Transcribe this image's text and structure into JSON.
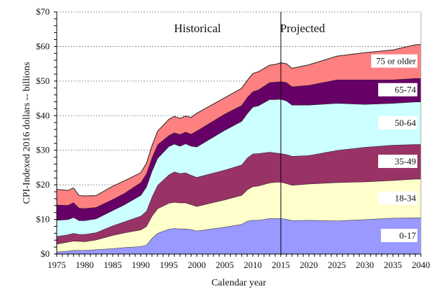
{
  "chart_data": {
    "type": "area",
    "stacked": true,
    "title": "",
    "xlabel": "Calendar year",
    "ylabel": "CPI-Indexed 2016 dollars -- billions",
    "xlim": [
      1975,
      2040
    ],
    "ylim": [
      0,
      70
    ],
    "x_ticks": [
      "1975",
      "1980",
      "1985",
      "1990",
      "1995",
      "2000",
      "2005",
      "2010",
      "2015",
      "2020",
      "2025",
      "2030",
      "2035",
      "2040"
    ],
    "y_ticks": [
      "$0",
      "$10",
      "$20",
      "$30",
      "$40",
      "$50",
      "$60",
      "$70"
    ],
    "y_tick_values": [
      0,
      10,
      20,
      30,
      40,
      50,
      60,
      70
    ],
    "grid": "horizontal-dashed",
    "divider": {
      "x": 2015,
      "left_label": "Historical",
      "right_label": "Projected"
    },
    "x": [
      1975,
      1977,
      1978,
      1979,
      1980,
      1982,
      1985,
      1987,
      1990,
      1991,
      1992,
      1993,
      1995,
      1996,
      1997,
      1998,
      1999,
      2000,
      2005,
      2008,
      2009,
      2010,
      2011,
      2013,
      2014,
      2015,
      2016,
      2017,
      2020,
      2025,
      2030,
      2035,
      2039,
      2040
    ],
    "series": [
      {
        "name": "0-17",
        "color": "#9999ff",
        "values": [
          0.6,
          0.9,
          1.1,
          1.1,
          1.1,
          1.3,
          1.6,
          1.9,
          2.2,
          2.6,
          4.6,
          6.0,
          7.2,
          7.4,
          7.3,
          7.3,
          7.1,
          6.7,
          7.8,
          8.6,
          9.5,
          9.8,
          9.8,
          10.3,
          10.3,
          10.3,
          10.1,
          9.7,
          9.8,
          9.6,
          10.0,
          10.4,
          10.5,
          10.5
        ]
      },
      {
        "name": "18-34",
        "color": "#ffffcc",
        "values": [
          2.3,
          2.6,
          2.7,
          2.6,
          2.5,
          2.8,
          3.8,
          4.2,
          4.8,
          5.4,
          6.4,
          7.1,
          7.5,
          7.6,
          7.5,
          7.5,
          7.2,
          7.1,
          7.9,
          8.4,
          9.1,
          9.7,
          9.9,
          10.3,
          10.5,
          10.5,
          10.3,
          10.2,
          10.5,
          11.1,
          10.9,
          10.9,
          11.2,
          11.2
        ]
      },
      {
        "name": "35-49",
        "color": "#993366",
        "values": [
          2.2,
          2.1,
          2.2,
          2.0,
          2.1,
          2.1,
          2.8,
          3.2,
          4.0,
          4.4,
          5.5,
          6.8,
          8.2,
          8.8,
          8.5,
          8.7,
          8.5,
          8.4,
          8.6,
          8.8,
          9.2,
          9.5,
          9.4,
          8.9,
          8.5,
          8.3,
          8.4,
          8.4,
          8.2,
          9.3,
          10.0,
          10.2,
          10.0,
          10.0
        ]
      },
      {
        "name": "50-64",
        "color": "#ccffff",
        "values": [
          4.7,
          4.4,
          4.6,
          4.0,
          4.0,
          4.0,
          4.4,
          4.9,
          6.0,
          7.0,
          7.5,
          7.8,
          8.2,
          8.0,
          7.9,
          8.4,
          8.4,
          8.8,
          11.5,
          12.6,
          12.8,
          13.5,
          13.8,
          15.2,
          15.4,
          15.7,
          15.5,
          14.8,
          14.6,
          13.6,
          12.4,
          12.1,
          12.3,
          12.3
        ]
      },
      {
        "name": "65-74",
        "color": "#660066",
        "values": [
          4.4,
          4.1,
          4.3,
          3.6,
          3.5,
          3.3,
          3.2,
          3.3,
          3.7,
          3.8,
          3.9,
          3.9,
          3.2,
          3.3,
          3.4,
          3.4,
          3.5,
          4.6,
          4.7,
          4.6,
          4.7,
          4.5,
          4.6,
          4.9,
          5.0,
          5.1,
          5.3,
          5.3,
          5.7,
          6.8,
          7.1,
          6.8,
          6.8,
          6.8
        ]
      },
      {
        "name": "75 or older",
        "color": "#ff8080",
        "values": [
          4.5,
          4.3,
          4.2,
          3.6,
          3.6,
          3.4,
          3.8,
          3.6,
          2.8,
          3.0,
          3.4,
          3.9,
          4.6,
          4.7,
          4.6,
          4.6,
          4.8,
          5.1,
          4.7,
          4.9,
          4.9,
          5.2,
          5.2,
          5.0,
          5.1,
          5.4,
          5.4,
          5.3,
          5.9,
          6.8,
          7.8,
          8.6,
          9.7,
          9.8
        ]
      }
    ],
    "legend_placement": "inline-right",
    "legend": [
      "75 or older",
      "65-74",
      "50-64",
      "35-49",
      "18-34",
      "0-17"
    ]
  }
}
